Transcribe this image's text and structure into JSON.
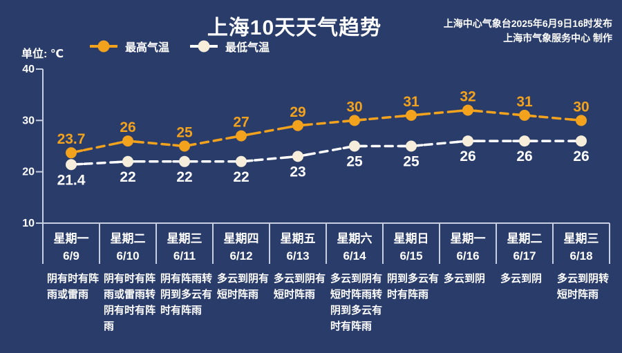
{
  "header": {
    "title": "上海10天天气趋势",
    "source_line1": "上海中心气象台2025年6月9日16时发布",
    "source_line2": "上海市气象服务中心 制作"
  },
  "unit_label": "单位: ℃",
  "colors": {
    "background": "#2a3c6a",
    "high_series": "#f2a21c",
    "low_series_line": "#ffffff",
    "low_series_dot": "#f6eedb",
    "axis": "#c7cfe0",
    "text": "#ffffff"
  },
  "chart_data": {
    "type": "line",
    "title": "上海10天天气趋势",
    "unit": "℃",
    "ylim": [
      10,
      40
    ],
    "yticks": [
      10,
      20,
      30,
      40
    ],
    "grid": false,
    "legend_position": "top-left",
    "categories": [
      {
        "weekday": "星期一",
        "date": "6/9",
        "weather": "阴有时有阵雨或雷雨"
      },
      {
        "weekday": "星期二",
        "date": "6/10",
        "weather": "阴有时有阵雨或雷雨转阴有时有阵雨"
      },
      {
        "weekday": "星期三",
        "date": "6/11",
        "weather": "阴有阵雨转阴到多云有时有阵雨"
      },
      {
        "weekday": "星期四",
        "date": "6/12",
        "weather": "多云到阴有短时阵雨"
      },
      {
        "weekday": "星期五",
        "date": "6/13",
        "weather": "多云到阴有短时阵雨"
      },
      {
        "weekday": "星期六",
        "date": "6/14",
        "weather": "多云到阴有短时阵雨转阴到多云有时有阵雨"
      },
      {
        "weekday": "星期日",
        "date": "6/15",
        "weather": "阴到多云有时有阵雨"
      },
      {
        "weekday": "星期一",
        "date": "6/16",
        "weather": "多云到阴"
      },
      {
        "weekday": "星期二",
        "date": "6/17",
        "weather": "多云到阴"
      },
      {
        "weekday": "星期三",
        "date": "6/18",
        "weather": "多云到阴转短时阵雨"
      }
    ],
    "series": [
      {
        "name": "最高气温",
        "values": [
          23.7,
          26,
          25,
          27,
          29,
          30,
          31,
          32,
          31,
          30
        ],
        "color": "#f2a21c",
        "dot_color": "#f2a21c",
        "label_color": "#f2a21c",
        "label_position": "above"
      },
      {
        "name": "最低气温",
        "values": [
          21.4,
          22,
          22,
          22,
          23,
          25,
          25,
          26,
          26,
          26
        ],
        "color": "#ffffff",
        "dot_color": "#f6eedb",
        "label_color": "#ffffff",
        "label_position": "below"
      }
    ]
  }
}
